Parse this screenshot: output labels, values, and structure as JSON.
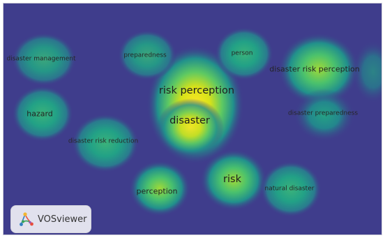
{
  "app": {
    "logo_text": "VOSviewer"
  },
  "colors": {
    "background": "#3f3d8c",
    "mid": "#21908c",
    "high": "#5ec962",
    "peak": "#fde725"
  },
  "terms": [
    {
      "id": "risk-perception",
      "label": "risk perception",
      "size": "s1"
    },
    {
      "id": "disaster",
      "label": "disaster",
      "size": "s1"
    },
    {
      "id": "disaster-management",
      "label": "disaster management",
      "size": "s3"
    },
    {
      "id": "preparedness",
      "label": "preparedness",
      "size": "s3"
    },
    {
      "id": "person",
      "label": "person",
      "size": "s3"
    },
    {
      "id": "disaster-risk-perception",
      "label": "disaster risk perception",
      "size": "s2"
    },
    {
      "id": "hazard",
      "label": "hazard",
      "size": "s2"
    },
    {
      "id": "disaster-preparedness",
      "label": "disaster preparedness",
      "size": "s3"
    },
    {
      "id": "disaster-risk-reduction",
      "label": "disaster risk reduction",
      "size": "s3"
    },
    {
      "id": "risk",
      "label": "risk",
      "size": "s1"
    },
    {
      "id": "perception",
      "label": "perception",
      "size": "s2"
    },
    {
      "id": "natural-disaster",
      "label": "natural disaster",
      "size": "s3"
    }
  ]
}
